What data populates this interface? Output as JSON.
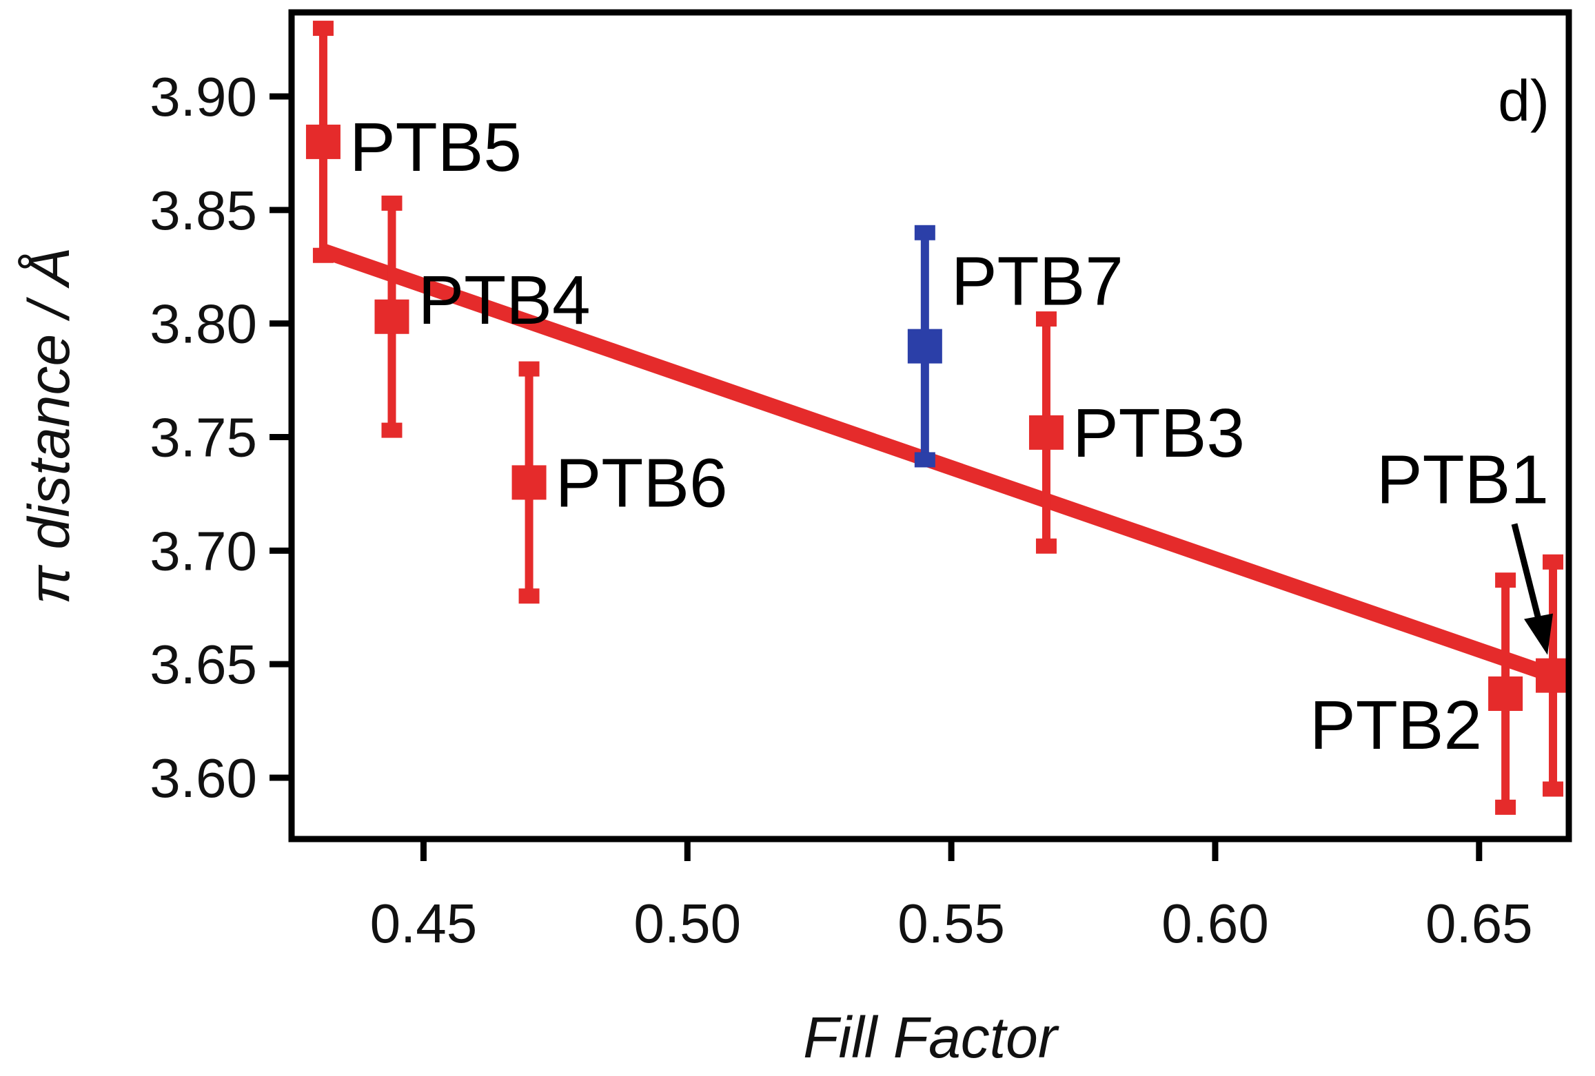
{
  "chart_data": {
    "type": "scatter",
    "title": "",
    "panel_label": "d)",
    "xlabel": "Fill Factor",
    "ylabel": "π distance / Å",
    "xlim": [
      0.425,
      0.667
    ],
    "ylim": [
      3.573,
      3.937
    ],
    "xticks": [
      0.45,
      0.5,
      0.55,
      0.6,
      0.65
    ],
    "xtick_labels": [
      "0.45",
      "0.50",
      "0.55",
      "0.60",
      "0.65"
    ],
    "yticks": [
      3.6,
      3.65,
      3.7,
      3.75,
      3.8,
      3.85,
      3.9
    ],
    "ytick_labels": [
      "3.60",
      "3.65",
      "3.70",
      "3.75",
      "3.80",
      "3.85",
      "3.90"
    ],
    "grid": false,
    "points": [
      {
        "label": "PTB5",
        "x": 0.431,
        "y": 3.88,
        "y_low": 3.83,
        "y_high": 3.93,
        "color": "#e52b2b"
      },
      {
        "label": "PTB4",
        "x": 0.444,
        "y": 3.803,
        "y_low": 3.753,
        "y_high": 3.853,
        "color": "#e52b2b"
      },
      {
        "label": "PTB6",
        "x": 0.47,
        "y": 3.73,
        "y_low": 3.68,
        "y_high": 3.78,
        "color": "#e52b2b"
      },
      {
        "label": "PTB7",
        "x": 0.545,
        "y": 3.79,
        "y_low": 3.74,
        "y_high": 3.84,
        "color": "#2b3fa8"
      },
      {
        "label": "PTB3",
        "x": 0.568,
        "y": 3.752,
        "y_low": 3.702,
        "y_high": 3.802,
        "color": "#e52b2b"
      },
      {
        "label": "PTB2",
        "x": 0.655,
        "y": 3.637,
        "y_low": 3.587,
        "y_high": 3.687,
        "color": "#e52b2b"
      },
      {
        "label": "PTB1",
        "x": 0.664,
        "y": 3.645,
        "y_low": 3.595,
        "y_high": 3.695,
        "color": "#e52b2b"
      }
    ],
    "fit_line": {
      "x": [
        0.431,
        0.664
      ],
      "y": [
        3.832,
        3.645
      ],
      "color": "#e52b2b"
    }
  }
}
